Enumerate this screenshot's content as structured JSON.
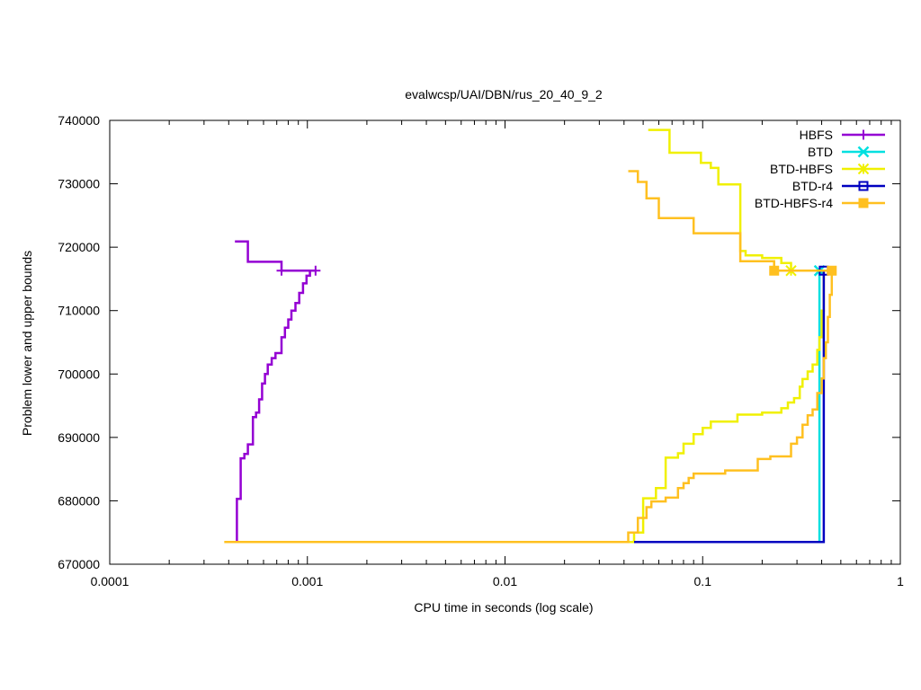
{
  "chart_data": {
    "type": "line",
    "title": "evalwcsp/UAI/DBN/rus_20_40_9_2",
    "xlabel": "CPU time in seconds (log scale)",
    "ylabel": "Problem lower and upper bounds",
    "xscale": "log",
    "xlim": [
      0.0001,
      1
    ],
    "ylim": [
      670000,
      740000
    ],
    "grid": false,
    "legend_position": "top-right",
    "x_ticks": [
      {
        "value": 0.0001,
        "label": "0.0001"
      },
      {
        "value": 0.001,
        "label": "0.001"
      },
      {
        "value": 0.01,
        "label": "0.01"
      },
      {
        "value": 0.1,
        "label": "0.1"
      },
      {
        "value": 1,
        "label": "1"
      }
    ],
    "y_ticks": [
      {
        "value": 670000,
        "label": "670000"
      },
      {
        "value": 680000,
        "label": "680000"
      },
      {
        "value": 690000,
        "label": "690000"
      },
      {
        "value": 700000,
        "label": "700000"
      },
      {
        "value": 710000,
        "label": "710000"
      },
      {
        "value": 720000,
        "label": "720000"
      },
      {
        "value": 730000,
        "label": "730000"
      },
      {
        "value": 740000,
        "label": "740000"
      }
    ],
    "series": [
      {
        "name": "HBFS",
        "color": "#9400d3",
        "marker": "plus",
        "paths": [
          [
            [
              0.00043,
              720900
            ],
            [
              0.0005,
              720900
            ],
            [
              0.0005,
              717700
            ],
            [
              0.00074,
              717700
            ],
            [
              0.00074,
              716300
            ],
            [
              0.0011,
              716300
            ]
          ],
          [
            [
              0.00044,
              673500
            ],
            [
              0.00044,
              680300
            ],
            [
              0.00046,
              680300
            ],
            [
              0.00046,
              686700
            ],
            [
              0.00048,
              686700
            ],
            [
              0.00048,
              687400
            ],
            [
              0.0005,
              687400
            ],
            [
              0.0005,
              688900
            ],
            [
              0.00053,
              688900
            ],
            [
              0.00053,
              693200
            ],
            [
              0.00055,
              693200
            ],
            [
              0.00055,
              693900
            ],
            [
              0.00057,
              693900
            ],
            [
              0.00057,
              696000
            ],
            [
              0.00059,
              696000
            ],
            [
              0.00059,
              698500
            ],
            [
              0.00061,
              698500
            ],
            [
              0.00061,
              700000
            ],
            [
              0.00063,
              700000
            ],
            [
              0.00063,
              701500
            ],
            [
              0.00066,
              701500
            ],
            [
              0.00066,
              702500
            ],
            [
              0.00069,
              702500
            ],
            [
              0.00069,
              703300
            ],
            [
              0.00074,
              703300
            ],
            [
              0.00074,
              705800
            ],
            [
              0.00077,
              705800
            ],
            [
              0.00077,
              707300
            ],
            [
              0.0008,
              707300
            ],
            [
              0.0008,
              708600
            ],
            [
              0.00083,
              708600
            ],
            [
              0.00083,
              710000
            ],
            [
              0.00087,
              710000
            ],
            [
              0.00087,
              711200
            ],
            [
              0.00091,
              711200
            ],
            [
              0.00091,
              712800
            ],
            [
              0.00095,
              712800
            ],
            [
              0.00095,
              714300
            ],
            [
              0.00099,
              714300
            ],
            [
              0.00099,
              715500
            ],
            [
              0.00103,
              715500
            ],
            [
              0.00103,
              716300
            ],
            [
              0.0011,
              716300
            ]
          ]
        ],
        "markers": [
          [
            0.00074,
            716300
          ],
          [
            0.0011,
            716300
          ]
        ]
      },
      {
        "name": "BTD",
        "color": "#00e0e0",
        "marker": "x",
        "paths": [
          [
            [
              0.045,
              673500
            ],
            [
              0.39,
              673500
            ],
            [
              0.39,
              716300
            ],
            [
              0.4,
              716300
            ]
          ]
        ],
        "markers": [
          [
            0.39,
            716300
          ]
        ]
      },
      {
        "name": "BTD-HBFS",
        "color": "#f0f000",
        "marker": "star",
        "paths": [
          [
            [
              0.053,
              738500
            ],
            [
              0.068,
              738500
            ],
            [
              0.068,
              734900
            ],
            [
              0.098,
              734900
            ],
            [
              0.098,
              733300
            ],
            [
              0.11,
              733300
            ],
            [
              0.11,
              732500
            ],
            [
              0.12,
              732500
            ],
            [
              0.12,
              729900
            ],
            [
              0.155,
              729900
            ],
            [
              0.155,
              719400
            ],
            [
              0.165,
              719400
            ],
            [
              0.165,
              718700
            ],
            [
              0.2,
              718700
            ],
            [
              0.2,
              718300
            ],
            [
              0.25,
              718300
            ],
            [
              0.25,
              717500
            ],
            [
              0.28,
              717500
            ],
            [
              0.28,
              716300
            ]
          ],
          [
            [
              0.00038,
              673500
            ],
            [
              0.045,
              673500
            ],
            [
              0.045,
              675000
            ],
            [
              0.05,
              675000
            ],
            [
              0.05,
              680400
            ],
            [
              0.058,
              680400
            ],
            [
              0.058,
              682000
            ],
            [
              0.065,
              682000
            ],
            [
              0.065,
              686800
            ],
            [
              0.075,
              686800
            ],
            [
              0.075,
              687500
            ],
            [
              0.08,
              687500
            ],
            [
              0.08,
              689000
            ],
            [
              0.09,
              689000
            ],
            [
              0.09,
              690500
            ],
            [
              0.1,
              690500
            ],
            [
              0.1,
              691500
            ],
            [
              0.11,
              691500
            ],
            [
              0.11,
              692500
            ],
            [
              0.15,
              692500
            ],
            [
              0.15,
              693600
            ],
            [
              0.2,
              693600
            ],
            [
              0.2,
              693900
            ],
            [
              0.25,
              693900
            ],
            [
              0.25,
              694600
            ],
            [
              0.27,
              694600
            ],
            [
              0.27,
              695500
            ],
            [
              0.29,
              695500
            ],
            [
              0.29,
              696200
            ],
            [
              0.31,
              696200
            ],
            [
              0.31,
              698000
            ],
            [
              0.32,
              698000
            ],
            [
              0.32,
              699200
            ],
            [
              0.34,
              699200
            ],
            [
              0.34,
              700400
            ],
            [
              0.36,
              700400
            ],
            [
              0.36,
              701500
            ],
            [
              0.38,
              701500
            ],
            [
              0.38,
              703800
            ],
            [
              0.39,
              703800
            ],
            [
              0.39,
              705800
            ],
            [
              0.4,
              705800
            ],
            [
              0.4,
              710000
            ],
            [
              0.41,
              710000
            ],
            [
              0.41,
              716300
            ]
          ]
        ],
        "markers": [
          [
            0.28,
            716300
          ]
        ]
      },
      {
        "name": "BTD-r4",
        "color": "#0000c0",
        "marker": "square",
        "paths": [
          [
            [
              0.045,
              673500
            ],
            [
              0.41,
              673500
            ],
            [
              0.41,
              716300
            ]
          ]
        ],
        "markers": [
          [
            0.41,
            716300
          ]
        ]
      },
      {
        "name": "BTD-HBFS-r4",
        "color": "#ffc020",
        "marker": "filled-square",
        "paths": [
          [
            [
              0.042,
              732000
            ],
            [
              0.047,
              732000
            ],
            [
              0.047,
              730300
            ],
            [
              0.052,
              730300
            ],
            [
              0.052,
              727700
            ],
            [
              0.06,
              727700
            ],
            [
              0.06,
              724600
            ],
            [
              0.09,
              724600
            ],
            [
              0.09,
              722200
            ],
            [
              0.155,
              722200
            ],
            [
              0.155,
              717800
            ],
            [
              0.23,
              717800
            ],
            [
              0.23,
              716300
            ],
            [
              0.45,
              716300
            ]
          ],
          [
            [
              0.00038,
              673500
            ],
            [
              0.042,
              673500
            ],
            [
              0.042,
              675000
            ],
            [
              0.047,
              675000
            ],
            [
              0.047,
              677300
            ],
            [
              0.052,
              677300
            ],
            [
              0.052,
              679000
            ],
            [
              0.055,
              679000
            ],
            [
              0.055,
              679900
            ],
            [
              0.065,
              679900
            ],
            [
              0.065,
              680500
            ],
            [
              0.075,
              680500
            ],
            [
              0.075,
              682000
            ],
            [
              0.08,
              682000
            ],
            [
              0.08,
              682800
            ],
            [
              0.085,
              682800
            ],
            [
              0.085,
              683600
            ],
            [
              0.09,
              683600
            ],
            [
              0.09,
              684300
            ],
            [
              0.13,
              684300
            ],
            [
              0.13,
              684800
            ],
            [
              0.19,
              684800
            ],
            [
              0.19,
              686600
            ],
            [
              0.22,
              686600
            ],
            [
              0.22,
              687000
            ],
            [
              0.28,
              687000
            ],
            [
              0.28,
              689000
            ],
            [
              0.3,
              689000
            ],
            [
              0.3,
              690000
            ],
            [
              0.32,
              690000
            ],
            [
              0.32,
              692000
            ],
            [
              0.34,
              692000
            ],
            [
              0.34,
              693500
            ],
            [
              0.36,
              693500
            ],
            [
              0.36,
              694400
            ],
            [
              0.38,
              694400
            ],
            [
              0.38,
              697000
            ],
            [
              0.4,
              697000
            ],
            [
              0.4,
              699300
            ],
            [
              0.41,
              699300
            ],
            [
              0.41,
              702500
            ],
            [
              0.42,
              702500
            ],
            [
              0.42,
              705000
            ],
            [
              0.43,
              705000
            ],
            [
              0.43,
              709000
            ],
            [
              0.44,
              709000
            ],
            [
              0.44,
              712500
            ],
            [
              0.45,
              712500
            ],
            [
              0.45,
              716300
            ]
          ]
        ],
        "markers": [
          [
            0.23,
            716300
          ],
          [
            0.45,
            716300
          ]
        ]
      }
    ]
  }
}
